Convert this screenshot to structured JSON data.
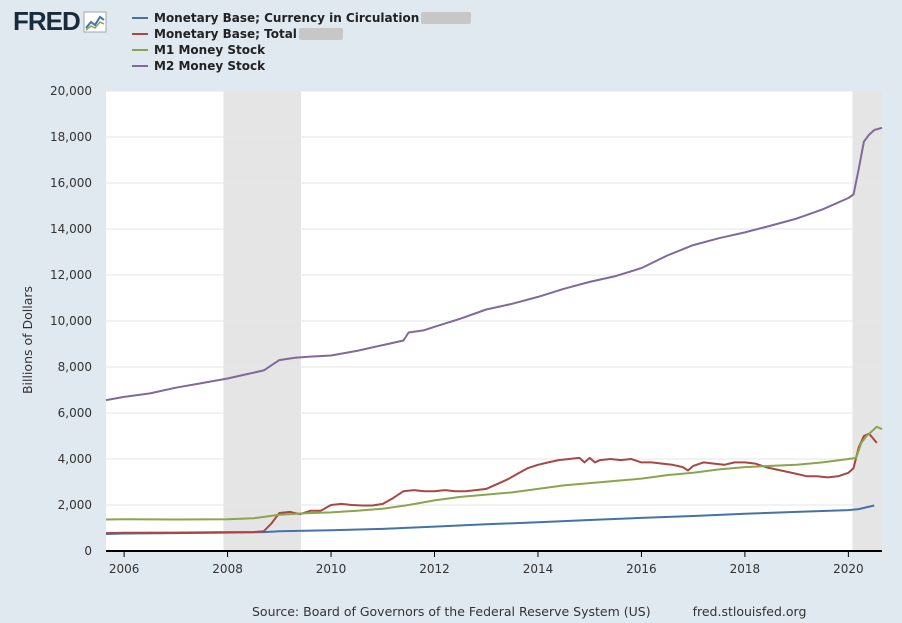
{
  "brand": {
    "logo_text": "FRED"
  },
  "source_text": "Source: Board of Governors of the Federal Reserve System (US)",
  "source_url": "fred.stlouisfed.org",
  "chart_data": {
    "type": "line",
    "title": "",
    "xlabel": "",
    "ylabel": "Billions of Dollars",
    "xlim": [
      2005.65,
      2020.65
    ],
    "ylim": [
      0,
      20000
    ],
    "yticks": [
      0,
      2000,
      4000,
      6000,
      8000,
      10000,
      12000,
      14000,
      16000,
      18000,
      20000
    ],
    "ytick_labels": [
      "0",
      "2,000",
      "4,000",
      "6,000",
      "8,000",
      "10,000",
      "12,000",
      "14,000",
      "16,000",
      "18,000",
      "20,000"
    ],
    "xticks": [
      2006,
      2008,
      2010,
      2012,
      2014,
      2016,
      2018,
      2020
    ],
    "xtick_labels": [
      "2006",
      "2008",
      "2010",
      "2012",
      "2014",
      "2016",
      "2018",
      "2020"
    ],
    "grid": "horizontal",
    "legend": "top-left",
    "recessions": [
      [
        2007.92,
        2009.42
      ],
      [
        2020.08,
        2020.65
      ]
    ],
    "series": [
      {
        "name": "Monetary Base; Currency in Circulation",
        "color": "#4572a7",
        "x": [
          2005.65,
          2006,
          2007,
          2008,
          2008.7,
          2009,
          2010,
          2011,
          2012,
          2013,
          2014,
          2015,
          2016,
          2017,
          2018,
          2019,
          2020,
          2020.2,
          2020.5
        ],
        "y": [
          740,
          760,
          780,
          800,
          820,
          860,
          900,
          960,
          1060,
          1160,
          1250,
          1350,
          1440,
          1520,
          1620,
          1700,
          1780,
          1820,
          1980
        ]
      },
      {
        "name": "Monetary Base; Total",
        "color": "#aa4643",
        "x": [
          2005.65,
          2006,
          2007,
          2008,
          2008.5,
          2008.7,
          2008.85,
          2009,
          2009.2,
          2009.4,
          2009.6,
          2009.8,
          2010,
          2010.2,
          2010.4,
          2010.6,
          2010.8,
          2011,
          2011.2,
          2011.4,
          2011.6,
          2011.8,
          2012,
          2012.2,
          2012.4,
          2012.6,
          2012.8,
          2013,
          2013.2,
          2013.4,
          2013.6,
          2013.8,
          2014,
          2014.2,
          2014.4,
          2014.6,
          2014.8,
          2014.9,
          2015,
          2015.1,
          2015.2,
          2015.4,
          2015.6,
          2015.8,
          2016,
          2016.2,
          2016.4,
          2016.6,
          2016.8,
          2016.9,
          2017,
          2017.2,
          2017.4,
          2017.6,
          2017.8,
          2018,
          2018.2,
          2018.4,
          2018.6,
          2018.8,
          2019,
          2019.2,
          2019.4,
          2019.6,
          2019.8,
          2020,
          2020.1,
          2020.2,
          2020.3,
          2020.4,
          2020.55
        ],
        "y": [
          780,
          790,
          800,
          820,
          820,
          860,
          1200,
          1650,
          1700,
          1600,
          1750,
          1750,
          2000,
          2050,
          2000,
          1980,
          1980,
          2050,
          2300,
          2600,
          2650,
          2600,
          2600,
          2650,
          2600,
          2600,
          2650,
          2700,
          2900,
          3100,
          3350,
          3600,
          3750,
          3850,
          3950,
          4000,
          4050,
          3850,
          4050,
          3850,
          3950,
          4000,
          3950,
          4000,
          3850,
          3850,
          3800,
          3750,
          3650,
          3500,
          3700,
          3850,
          3800,
          3750,
          3850,
          3850,
          3800,
          3650,
          3550,
          3450,
          3350,
          3250,
          3250,
          3200,
          3250,
          3400,
          3600,
          4500,
          5000,
          5100,
          4700
        ]
      },
      {
        "name": "M1 Money Stock",
        "color": "#89a54e",
        "x": [
          2005.65,
          2006,
          2007,
          2008,
          2008.5,
          2009,
          2009.5,
          2010,
          2010.5,
          2011,
          2011.5,
          2012,
          2012.5,
          2013,
          2013.5,
          2014,
          2014.5,
          2015,
          2015.5,
          2016,
          2016.5,
          2017,
          2017.5,
          2018,
          2018.5,
          2019,
          2019.5,
          2020,
          2020.15,
          2020.25,
          2020.35,
          2020.45,
          2020.55,
          2020.65
        ],
        "y": [
          1370,
          1380,
          1370,
          1380,
          1420,
          1580,
          1640,
          1680,
          1750,
          1840,
          2000,
          2200,
          2350,
          2450,
          2550,
          2700,
          2850,
          2950,
          3050,
          3150,
          3300,
          3400,
          3550,
          3650,
          3700,
          3750,
          3850,
          4000,
          4050,
          4700,
          5000,
          5200,
          5400,
          5300
        ]
      },
      {
        "name": "M2 Money Stock",
        "color": "#80699b",
        "x": [
          2005.65,
          2006,
          2006.5,
          2007,
          2007.5,
          2008,
          2008.3,
          2008.7,
          2009,
          2009.3,
          2009.6,
          2010,
          2010.5,
          2011,
          2011.4,
          2011.5,
          2011.8,
          2012,
          2012.5,
          2013,
          2013.5,
          2014,
          2014.5,
          2015,
          2015.5,
          2016,
          2016.5,
          2017,
          2017.5,
          2018,
          2018.5,
          2019,
          2019.5,
          2020,
          2020.1,
          2020.2,
          2020.3,
          2020.4,
          2020.5,
          2020.65
        ],
        "y": [
          6560,
          6700,
          6850,
          7100,
          7300,
          7500,
          7650,
          7850,
          8300,
          8400,
          8450,
          8500,
          8700,
          8950,
          9150,
          9500,
          9600,
          9750,
          10100,
          10500,
          10750,
          11050,
          11400,
          11700,
          11950,
          12300,
          12850,
          13300,
          13600,
          13850,
          14150,
          14450,
          14850,
          15350,
          15500,
          16600,
          17800,
          18100,
          18300,
          18400
        ]
      }
    ]
  }
}
